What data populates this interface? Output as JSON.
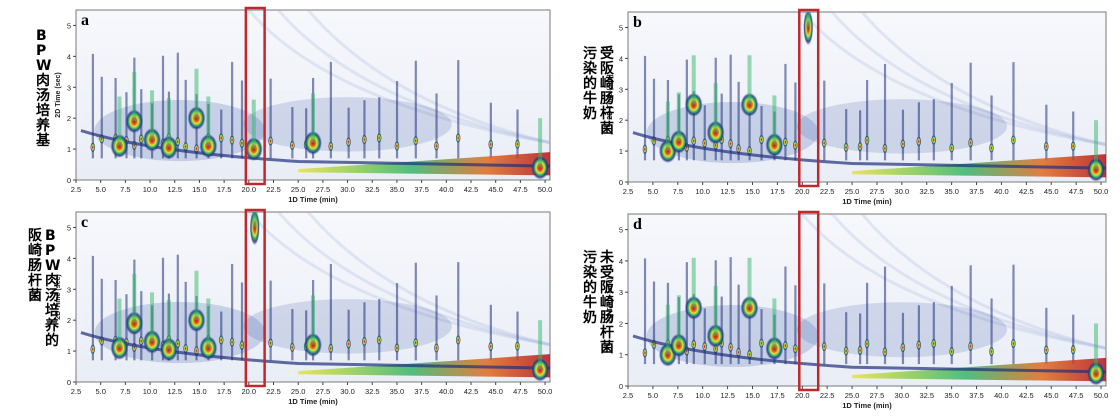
{
  "chart_data": [
    {
      "type": "heatmap",
      "panel_letter": "a",
      "side_label": [
        "BPW肉汤培养基"
      ],
      "xlabel": "1D Time (min)",
      "ylabel": "2D Time (sec)",
      "xlim": [
        2.5,
        50.5
      ],
      "ylim": [
        0,
        5.5
      ],
      "x_ticks": [
        "2.5",
        "5.0",
        "7.5",
        "10.0",
        "12.5",
        "15.0",
        "17.5",
        "20.0",
        "22.5",
        "25.0",
        "27.5",
        "30.0",
        "32.5",
        "35.0",
        "37.5",
        "40.0",
        "42.5",
        "45.0",
        "47.5",
        "50.0"
      ],
      "y_ticks": [
        "0",
        "1",
        "2",
        "3",
        "4",
        "5"
      ],
      "highlight_x": [
        19.7,
        21.6
      ],
      "peaks": [
        {
          "x": 6.9,
          "y": 1.1
        },
        {
          "x": 8.4,
          "y": 1.9
        },
        {
          "x": 10.2,
          "y": 1.3
        },
        {
          "x": 11.9,
          "y": 1.05
        },
        {
          "x": 14.7,
          "y": 2.0
        },
        {
          "x": 15.9,
          "y": 1.1
        },
        {
          "x": 20.5,
          "y": 1.0
        },
        {
          "x": 26.5,
          "y": 1.2
        },
        {
          "x": 49.5,
          "y": 0.4
        }
      ]
    },
    {
      "type": "heatmap",
      "panel_letter": "b",
      "side_label": [
        "受阪崎肠杆菌",
        "污染的牛奶"
      ],
      "xlabel": "1D Time (min)",
      "ylabel": "2D Time (sec)",
      "xlim": [
        2.5,
        50.5
      ],
      "ylim": [
        0,
        5.5
      ],
      "x_ticks": [
        "2.5",
        "5.0",
        "7.5",
        "10.0",
        "12.5",
        "15.0",
        "17.5",
        "20.0",
        "22.5",
        "25.0",
        "27.5",
        "30.0",
        "32.5",
        "35.0",
        "37.5",
        "40.0",
        "42.5",
        "45.0",
        "47.5",
        "50.0"
      ],
      "y_ticks": [
        "0",
        "1",
        "2",
        "3",
        "4",
        "5"
      ],
      "highlight_x": [
        19.7,
        21.6
      ],
      "peaks": [
        {
          "x": 6.5,
          "y": 1.0
        },
        {
          "x": 7.6,
          "y": 1.3
        },
        {
          "x": 9.1,
          "y": 2.5
        },
        {
          "x": 11.3,
          "y": 1.6
        },
        {
          "x": 14.7,
          "y": 2.5
        },
        {
          "x": 17.2,
          "y": 1.2
        },
        {
          "x": 20.6,
          "y": 5.0
        },
        {
          "x": 49.5,
          "y": 0.4
        }
      ]
    },
    {
      "type": "heatmap",
      "panel_letter": "c",
      "side_label": [
        "BPW肉汤培养的",
        "阪崎肠杆菌"
      ],
      "xlabel": "1D Time (min)",
      "ylabel": "2D Time (sec)",
      "xlim": [
        2.5,
        50.5
      ],
      "ylim": [
        0,
        5.5
      ],
      "x_ticks": [
        "2.5",
        "5.0",
        "7.5",
        "10.0",
        "12.5",
        "15.0",
        "17.5",
        "20.0",
        "22.5",
        "25.0",
        "27.5",
        "30.0",
        "32.5",
        "35.0",
        "37.5",
        "40.0",
        "42.5",
        "45.0",
        "47.5",
        "50.0"
      ],
      "y_ticks": [
        "0",
        "1",
        "2",
        "3",
        "4",
        "5"
      ],
      "highlight_x": [
        19.7,
        21.6
      ],
      "peaks": [
        {
          "x": 6.9,
          "y": 1.1
        },
        {
          "x": 8.4,
          "y": 1.9
        },
        {
          "x": 10.2,
          "y": 1.3
        },
        {
          "x": 11.9,
          "y": 1.05
        },
        {
          "x": 14.7,
          "y": 2.0
        },
        {
          "x": 15.9,
          "y": 1.1
        },
        {
          "x": 20.6,
          "y": 5.0
        },
        {
          "x": 26.5,
          "y": 1.2
        },
        {
          "x": 49.5,
          "y": 0.4
        }
      ]
    },
    {
      "type": "heatmap",
      "panel_letter": "d",
      "side_label": [
        "未受阪崎肠杆菌",
        "污染的牛奶"
      ],
      "xlabel": "1D Time (min)",
      "ylabel": "2D Time (sec)",
      "xlim": [
        2.5,
        50.5
      ],
      "ylim": [
        0,
        5.5
      ],
      "x_ticks": [
        "2.5",
        "5.0",
        "7.5",
        "10.0",
        "12.5",
        "15.0",
        "17.5",
        "20.0",
        "22.5",
        "25.0",
        "27.5",
        "30.0",
        "32.5",
        "35.0",
        "37.5",
        "40.0",
        "42.5",
        "45.0",
        "47.5",
        "50.0"
      ],
      "y_ticks": [
        "0",
        "1",
        "2",
        "3",
        "4",
        "5"
      ],
      "highlight_x": [
        19.7,
        21.6
      ],
      "peaks": [
        {
          "x": 6.5,
          "y": 1.0
        },
        {
          "x": 7.6,
          "y": 1.3
        },
        {
          "x": 9.1,
          "y": 2.5
        },
        {
          "x": 11.3,
          "y": 1.6
        },
        {
          "x": 14.7,
          "y": 2.5
        },
        {
          "x": 17.2,
          "y": 1.2
        },
        {
          "x": 49.5,
          "y": 0.4
        }
      ]
    }
  ],
  "colors": {
    "highlight_box": "#c0282d",
    "panel_background": "#f4f6fb",
    "colormap": [
      "#eef1f8",
      "#a9b7d8",
      "#3b5aa8",
      "#1f2f7a",
      "#36b56a",
      "#e8e23a",
      "#e06a1f",
      "#b3131b"
    ]
  }
}
